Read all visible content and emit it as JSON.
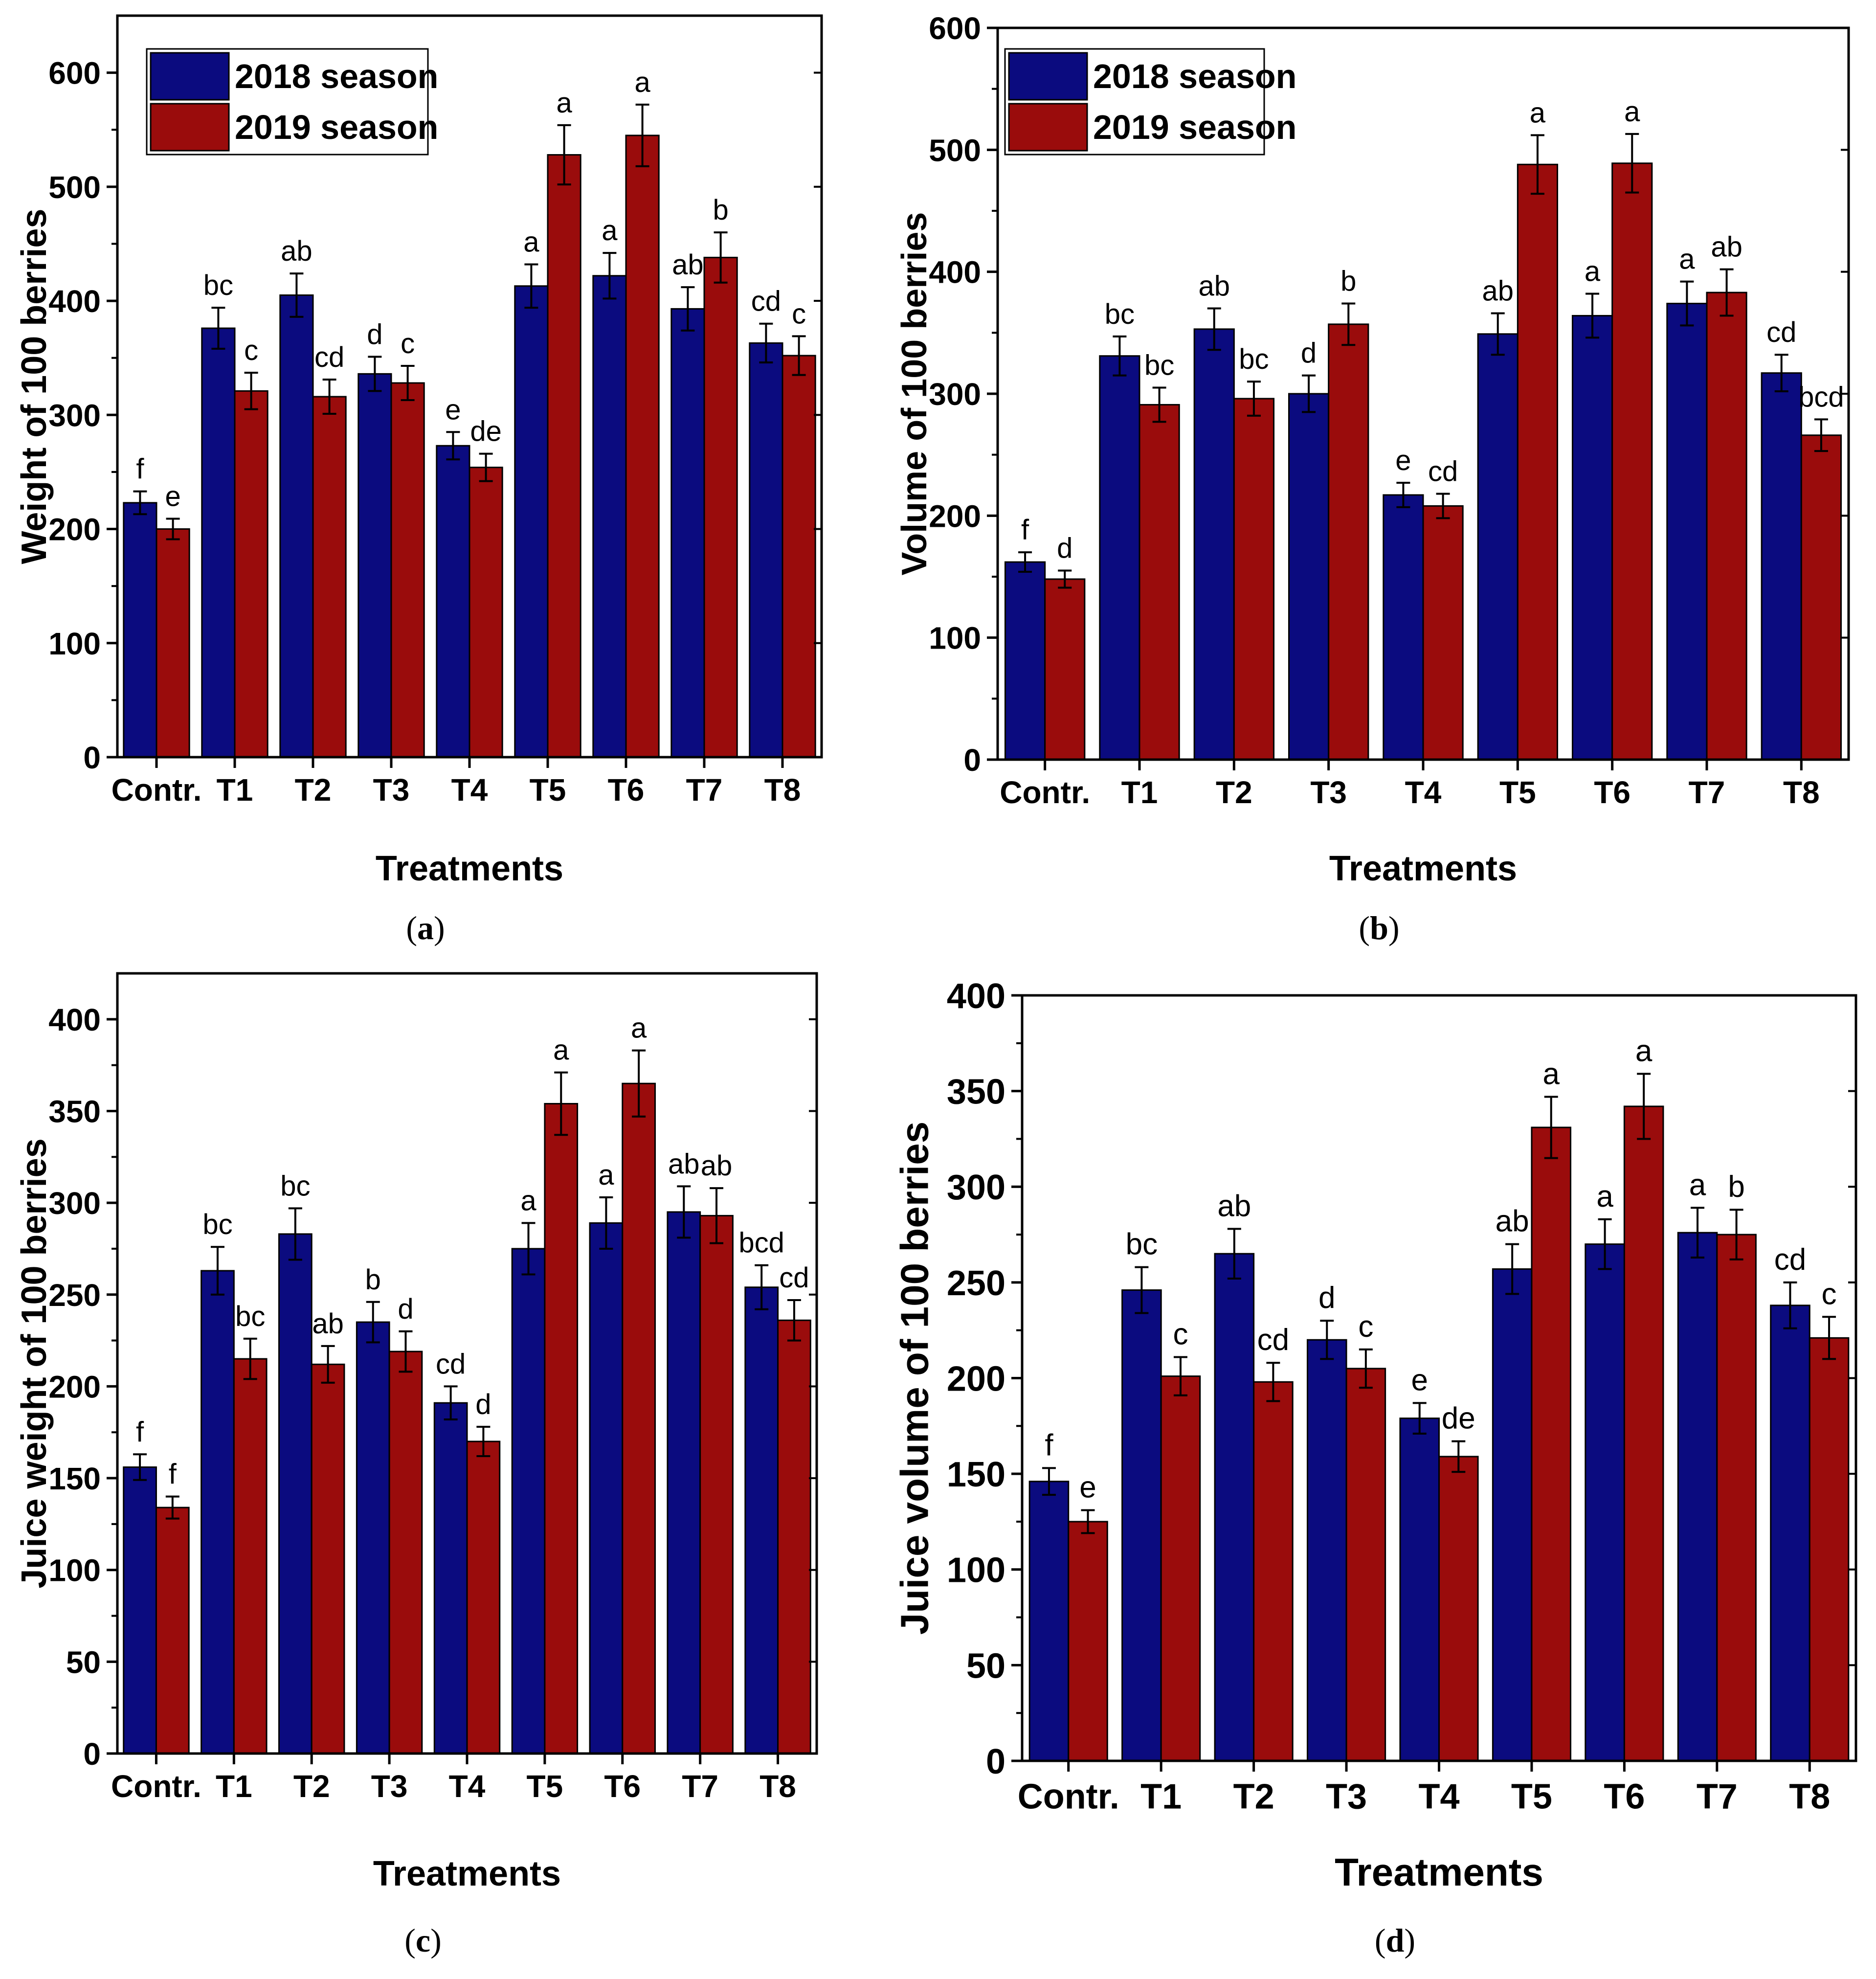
{
  "figure": {
    "colors": {
      "series_2018": "#0b0b7f",
      "series_2019": "#9a0c0c",
      "axis": "#000000"
    }
  },
  "chart_data": [
    {
      "panel": "a",
      "type": "bar",
      "xlabel": "Treatments",
      "ylabel": "Weight of 100 berries",
      "ylim": [
        0,
        650
      ],
      "yticks": [
        0,
        100,
        200,
        300,
        400,
        500,
        600
      ],
      "legend": "top-left",
      "categories": [
        "Contr.",
        "T1",
        "T2",
        "T3",
        "T4",
        "T5",
        "T6",
        "T7",
        "T8"
      ],
      "series": [
        {
          "name": "2018 season",
          "values": [
            223,
            376,
            405,
            336,
            273,
            413,
            422,
            393,
            363
          ],
          "errors": [
            10,
            18,
            19,
            15,
            12,
            19,
            20,
            19,
            17
          ],
          "letters": [
            "f",
            "bc",
            "ab",
            "d",
            "e",
            "a",
            "a",
            "ab",
            "cd"
          ]
        },
        {
          "name": "2019 season",
          "values": [
            200,
            321,
            316,
            328,
            254,
            528,
            545,
            438,
            352
          ],
          "errors": [
            9,
            16,
            15,
            15,
            12,
            26,
            27,
            22,
            17
          ],
          "letters": [
            "e",
            "c",
            "cd",
            "c",
            "de",
            "a",
            "a",
            "b",
            "c"
          ]
        }
      ]
    },
    {
      "panel": "b",
      "type": "bar",
      "xlabel": "Treatments",
      "ylabel": "Volume of 100 berries",
      "ylim": [
        0,
        600
      ],
      "yticks": [
        0,
        100,
        200,
        300,
        400,
        500,
        600
      ],
      "legend": "top-left",
      "categories": [
        "Contr.",
        "T1",
        "T2",
        "T3",
        "T4",
        "T5",
        "T6",
        "T7",
        "T8"
      ],
      "series": [
        {
          "name": "2018 season",
          "values": [
            162,
            331,
            353,
            300,
            217,
            349,
            364,
            374,
            317
          ],
          "errors": [
            8,
            16,
            17,
            15,
            10,
            17,
            18,
            18,
            15
          ],
          "letters": [
            "f",
            "bc",
            "ab",
            "d",
            "e",
            "ab",
            "a",
            "a",
            "cd"
          ]
        },
        {
          "name": "2019 season",
          "values": [
            148,
            291,
            296,
            357,
            208,
            488,
            489,
            383,
            266
          ],
          "errors": [
            7,
            14,
            14,
            17,
            10,
            24,
            24,
            19,
            13
          ],
          "letters": [
            "d",
            "bc",
            "bc",
            "b",
            "cd",
            "a",
            "a",
            "ab",
            "bcd"
          ]
        }
      ]
    },
    {
      "panel": "c",
      "type": "bar",
      "xlabel": "Treatments",
      "ylabel": "Juice weight of 100 berries",
      "ylim": [
        0,
        425
      ],
      "yticks": [
        0,
        50,
        100,
        150,
        200,
        250,
        300,
        350,
        400
      ],
      "categories": [
        "Contr.",
        "T1",
        "T2",
        "T3",
        "T4",
        "T5",
        "T6",
        "T7",
        "T8"
      ],
      "series": [
        {
          "name": "2018 season",
          "values": [
            156,
            263,
            283,
            235,
            191,
            275,
            289,
            295,
            254
          ],
          "errors": [
            7,
            13,
            14,
            11,
            9,
            14,
            14,
            14,
            12
          ],
          "letters": [
            "f",
            "bc",
            "bc",
            "b",
            "cd",
            "a",
            "a",
            "ab",
            "bcd"
          ]
        },
        {
          "name": "2019 season",
          "values": [
            134,
            215,
            212,
            219,
            170,
            354,
            365,
            293,
            236
          ],
          "errors": [
            6,
            11,
            10,
            11,
            8,
            17,
            18,
            15,
            11
          ],
          "letters": [
            "f",
            "bc",
            "ab",
            "d",
            "d",
            "a",
            "a",
            "ab",
            "cd"
          ]
        }
      ]
    },
    {
      "panel": "d",
      "type": "bar",
      "xlabel": "Treatments",
      "ylabel": "Juice volume  of 100 berries",
      "ylim": [
        0,
        400
      ],
      "yticks": [
        0,
        50,
        100,
        150,
        200,
        250,
        300,
        350,
        400
      ],
      "categories": [
        "Contr.",
        "T1",
        "T2",
        "T3",
        "T4",
        "T5",
        "T6",
        "T7",
        "T8"
      ],
      "series": [
        {
          "name": "2018 season",
          "values": [
            146,
            246,
            265,
            220,
            179,
            257,
            270,
            276,
            238
          ],
          "errors": [
            7,
            12,
            13,
            10,
            8,
            13,
            13,
            13,
            12
          ],
          "letters": [
            "f",
            "bc",
            "ab",
            "d",
            "e",
            "ab",
            "a",
            "a",
            "cd"
          ]
        },
        {
          "name": "2019 season",
          "values": [
            125,
            201,
            198,
            205,
            159,
            331,
            342,
            275,
            221
          ],
          "errors": [
            6,
            10,
            10,
            10,
            8,
            16,
            17,
            13,
            11
          ],
          "letters": [
            "e",
            "c",
            "cd",
            "c",
            "de",
            "a",
            "a",
            "b",
            "c"
          ]
        }
      ]
    }
  ]
}
